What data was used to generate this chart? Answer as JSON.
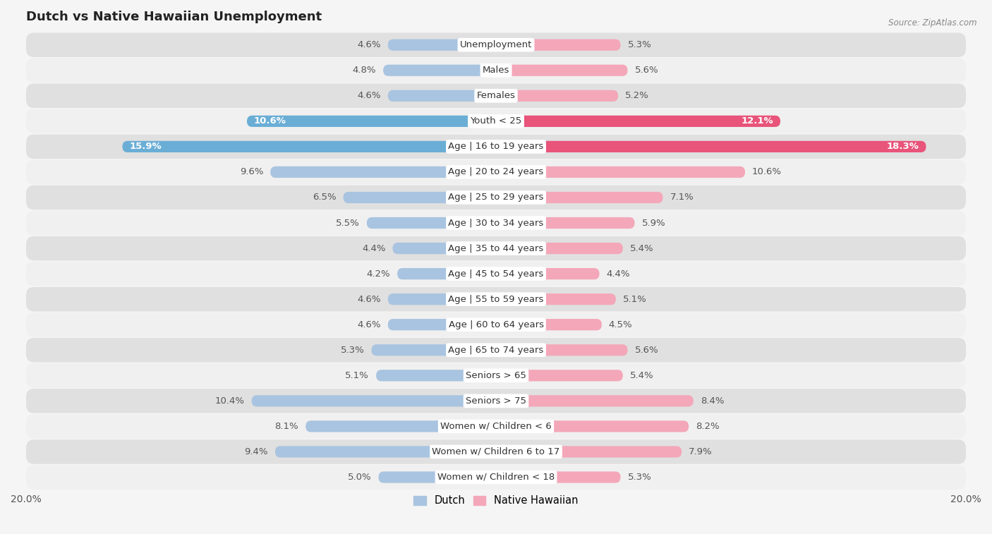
{
  "title": "Dutch vs Native Hawaiian Unemployment",
  "source": "Source: ZipAtlas.com",
  "categories": [
    "Unemployment",
    "Males",
    "Females",
    "Youth < 25",
    "Age | 16 to 19 years",
    "Age | 20 to 24 years",
    "Age | 25 to 29 years",
    "Age | 30 to 34 years",
    "Age | 35 to 44 years",
    "Age | 45 to 54 years",
    "Age | 55 to 59 years",
    "Age | 60 to 64 years",
    "Age | 65 to 74 years",
    "Seniors > 65",
    "Seniors > 75",
    "Women w/ Children < 6",
    "Women w/ Children 6 to 17",
    "Women w/ Children < 18"
  ],
  "dutch_values": [
    4.6,
    4.8,
    4.6,
    10.6,
    15.9,
    9.6,
    6.5,
    5.5,
    4.4,
    4.2,
    4.6,
    4.6,
    5.3,
    5.1,
    10.4,
    8.1,
    9.4,
    5.0
  ],
  "native_hawaiian_values": [
    5.3,
    5.6,
    5.2,
    12.1,
    18.3,
    10.6,
    7.1,
    5.9,
    5.4,
    4.4,
    5.1,
    4.5,
    5.6,
    5.4,
    8.4,
    8.2,
    7.9,
    5.3
  ],
  "dutch_color": "#a8c4e0",
  "native_hawaiian_color": "#f4a7b9",
  "dutch_highlight_color": "#6aaed6",
  "native_hawaiian_highlight_color": "#e8547a",
  "background_color": "#f5f5f5",
  "row_light_color": "#f0f0f0",
  "row_dark_color": "#e0e0e0",
  "axis_max": 20.0,
  "label_fontsize": 9.5,
  "title_fontsize": 13,
  "bar_height": 0.45,
  "highlight_indices": [
    3,
    4
  ]
}
